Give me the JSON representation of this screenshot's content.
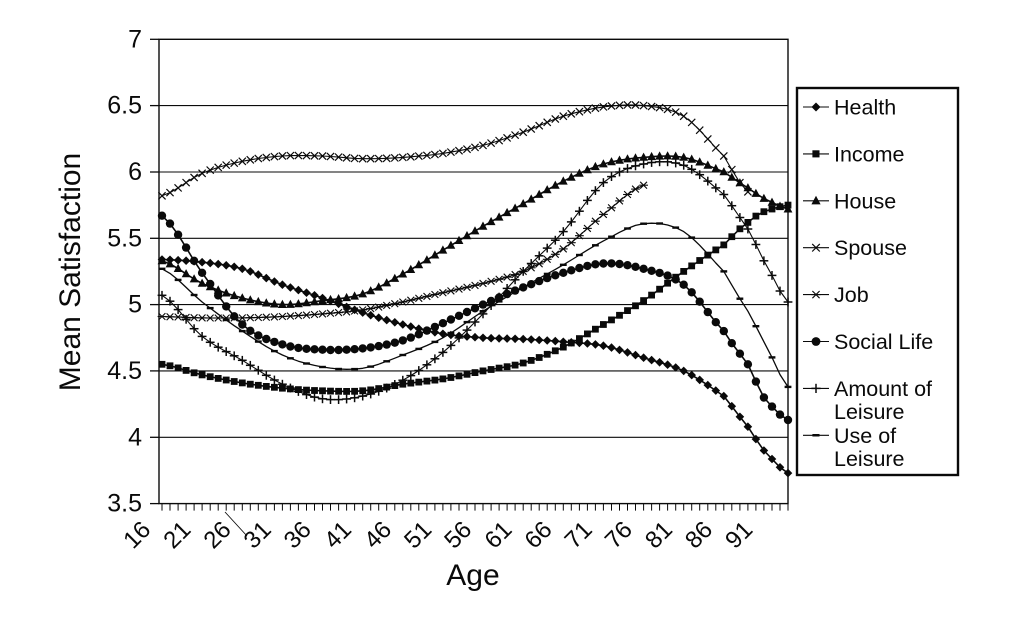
{
  "chart_data": {
    "type": "line",
    "title": "",
    "xlabel": "Age",
    "ylabel": "Mean Satisfaction",
    "xlim": [
      16,
      94
    ],
    "ylim": [
      3.5,
      7.0
    ],
    "y_ticks": [
      7,
      6.5,
      6,
      5.5,
      5,
      4.5,
      4,
      3.5
    ],
    "x_tick_labels": [
      16,
      21,
      26,
      31,
      36,
      41,
      46,
      51,
      56,
      61,
      66,
      71,
      76,
      81,
      86,
      91
    ],
    "x_minor_tick_step": 1,
    "grid": "horizontal-only",
    "legend_position": "right-outside",
    "line_color": "#0a0a0a",
    "ages": [
      16,
      21,
      26,
      31,
      36,
      41,
      46,
      51,
      56,
      61,
      66,
      71,
      76,
      81,
      86,
      89,
      91,
      94
    ],
    "series": [
      {
        "name": "Health",
        "marker": "filled-diamond",
        "values": [
          5.34,
          5.32,
          5.27,
          5.15,
          5.05,
          4.94,
          4.85,
          4.78,
          4.75,
          4.74,
          4.72,
          4.69,
          4.6,
          4.5,
          4.31,
          4.08,
          3.9,
          3.73
        ]
      },
      {
        "name": "Income",
        "marker": "filled-square",
        "values": [
          4.55,
          4.47,
          4.41,
          4.37,
          4.35,
          4.35,
          4.4,
          4.44,
          4.5,
          4.56,
          4.68,
          4.85,
          5.03,
          5.25,
          5.45,
          5.62,
          5.7,
          5.75
        ]
      },
      {
        "name": "House",
        "marker": "filled-triangle",
        "values": [
          5.33,
          5.16,
          5.05,
          5.0,
          5.03,
          5.08,
          5.23,
          5.41,
          5.59,
          5.76,
          5.93,
          6.06,
          6.11,
          6.11,
          6.0,
          5.88,
          5.8,
          5.72
        ]
      },
      {
        "name": "Spouse",
        "marker": "x-cross",
        "values": [
          5.82,
          5.99,
          6.08,
          6.12,
          6.12,
          6.1,
          6.11,
          6.14,
          6.2,
          6.3,
          6.42,
          6.49,
          6.5,
          6.42,
          6.12,
          5.85,
          null,
          null
        ]
      },
      {
        "name": "Job",
        "marker": "asterisk",
        "values": [
          4.91,
          4.9,
          4.9,
          4.91,
          4.93,
          4.96,
          5.02,
          5.09,
          5.16,
          5.25,
          5.42,
          5.68,
          5.9,
          null,
          null,
          null,
          null,
          null
        ]
      },
      {
        "name": "Social Life",
        "marker": "filled-circle",
        "values": [
          5.67,
          5.24,
          4.85,
          4.7,
          4.66,
          4.67,
          4.73,
          4.86,
          5.0,
          5.13,
          5.24,
          5.31,
          5.27,
          5.15,
          4.8,
          4.55,
          4.3,
          4.13
        ]
      },
      {
        "name": "Amount of Leisure",
        "marker": "plus",
        "values": [
          5.07,
          4.76,
          4.58,
          4.4,
          4.29,
          4.31,
          4.43,
          4.64,
          4.93,
          5.25,
          5.55,
          5.92,
          6.06,
          6.05,
          5.83,
          5.57,
          5.33,
          5.02
        ]
      },
      {
        "name": "Use of Leisure",
        "marker": "short-dash",
        "values": [
          5.27,
          5.02,
          4.8,
          4.62,
          4.53,
          4.52,
          4.62,
          4.75,
          4.95,
          5.13,
          5.3,
          5.48,
          5.61,
          5.55,
          5.25,
          4.95,
          4.72,
          4.38
        ]
      }
    ]
  },
  "legend": {
    "items": [
      {
        "marker": "filled-diamond",
        "lines": [
          "Health"
        ]
      },
      {
        "marker": "filled-square",
        "lines": [
          "Income"
        ]
      },
      {
        "marker": "filled-triangle",
        "lines": [
          "House"
        ]
      },
      {
        "marker": "x-cross",
        "lines": [
          "Spouse"
        ]
      },
      {
        "marker": "asterisk",
        "lines": [
          "Job"
        ]
      },
      {
        "marker": "filled-circle",
        "lines": [
          "Social Life"
        ]
      },
      {
        "marker": "plus",
        "lines": [
          "Amount of",
          "Leisure"
        ]
      },
      {
        "marker": "short-dash",
        "lines": [
          "Use of",
          "Leisure"
        ]
      }
    ]
  }
}
